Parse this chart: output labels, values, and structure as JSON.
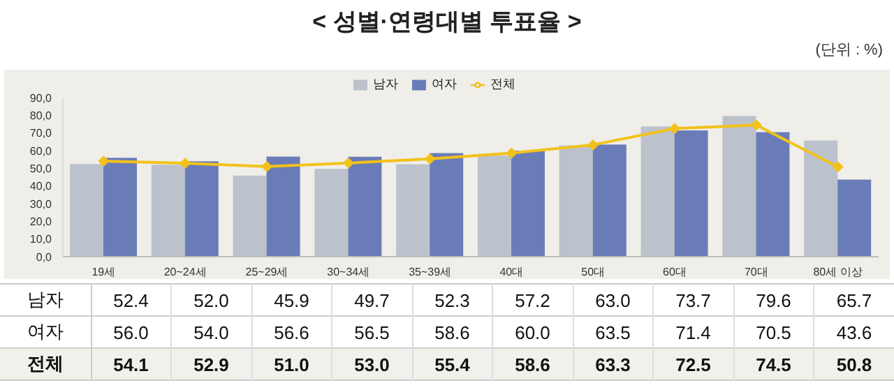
{
  "chart_data": {
    "type": "bar",
    "title": "< 성별·연령대별 투표율 >",
    "annotations": [
      "(단위 : %)"
    ],
    "categories": [
      "19세",
      "20~24세",
      "25~29세",
      "30~34세",
      "35~39세",
      "40대",
      "50대",
      "60대",
      "70대",
      "80세 이상"
    ],
    "series": [
      {
        "name": "남자",
        "color": "#bcc2cc",
        "values": [
          52.4,
          52.0,
          45.9,
          49.7,
          52.3,
          57.2,
          63.0,
          73.7,
          79.6,
          65.7
        ],
        "value_labels": [
          "52.4",
          "52.0",
          "45.9",
          "49.7",
          "52.3",
          "57.2",
          "63.0",
          "73.7",
          "79.6",
          "65.7"
        ]
      },
      {
        "name": "여자",
        "color": "#6a7cb8",
        "values": [
          56.0,
          54.0,
          56.6,
          56.5,
          58.6,
          60.0,
          63.5,
          71.4,
          70.5,
          43.6
        ],
        "value_labels": [
          "56.0",
          "54.0",
          "56.6",
          "56.5",
          "58.6",
          "60.0",
          "63.5",
          "71.4",
          "70.5",
          "43.6"
        ]
      },
      {
        "name": "전체",
        "type": "line",
        "color": "#f2c21a",
        "marker": "diamond",
        "values": [
          54.1,
          52.9,
          51.0,
          53.0,
          55.4,
          58.6,
          63.3,
          72.5,
          74.5,
          50.8
        ],
        "value_labels": [
          "54.1",
          "52.9",
          "51.0",
          "53.0",
          "55.4",
          "58.6",
          "63.3",
          "72.5",
          "74.5",
          "50.8"
        ]
      }
    ],
    "ylim": [
      0,
      90
    ],
    "yticks": [
      {
        "value": 0,
        "label": "0,0"
      },
      {
        "value": 10,
        "label": "10,0"
      },
      {
        "value": 20,
        "label": "20,0"
      },
      {
        "value": 30,
        "label": "30,0"
      },
      {
        "value": 40,
        "label": "40,0"
      },
      {
        "value": 50,
        "label": "50,0"
      },
      {
        "value": 60,
        "label": "60,0"
      },
      {
        "value": 70,
        "label": "70,0"
      },
      {
        "value": 80,
        "label": "80,0"
      },
      {
        "value": 90,
        "label": "90,0"
      }
    ],
    "legend": "top"
  }
}
